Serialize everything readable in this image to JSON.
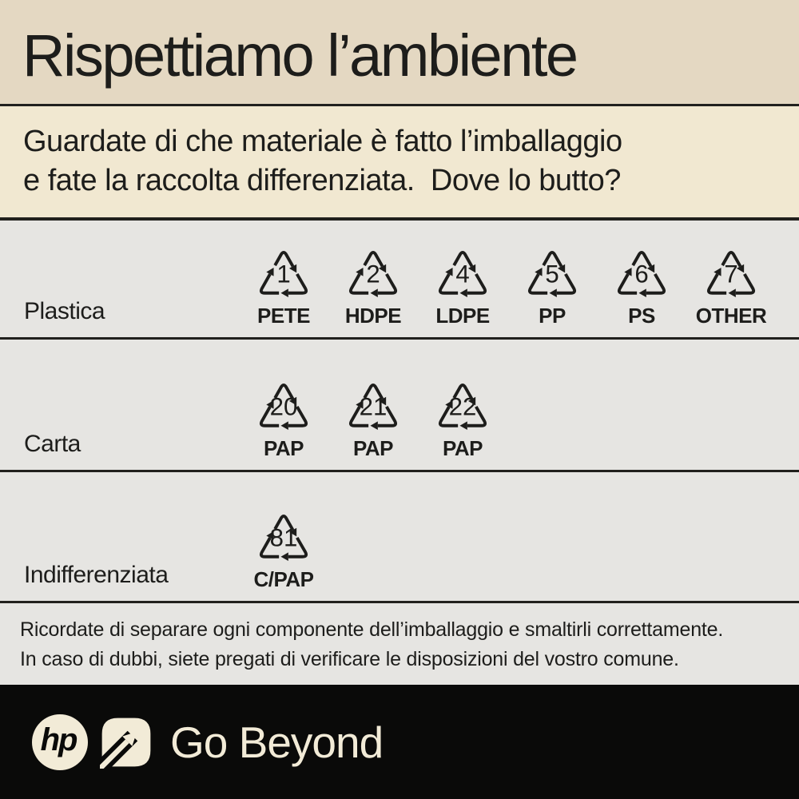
{
  "title": "Rispettiamo l’ambiente",
  "subtitle": {
    "line1": "Guardate di che materiale è fatto l’imballaggio",
    "line2": "e fate la raccolta differenziata.  Dove lo butto?"
  },
  "materials": [
    {
      "label": "Plastica",
      "symbols": [
        {
          "number": "1",
          "code": "PETE"
        },
        {
          "number": "2",
          "code": "HDPE"
        },
        {
          "number": "4",
          "code": "LDPE"
        },
        {
          "number": "5",
          "code": "PP"
        },
        {
          "number": "6",
          "code": "PS"
        },
        {
          "number": "7",
          "code": "OTHER"
        }
      ]
    },
    {
      "label": "Carta",
      "symbols": [
        {
          "number": "20",
          "code": "PAP"
        },
        {
          "number": "21",
          "code": "PAP"
        },
        {
          "number": "22",
          "code": "PAP"
        }
      ]
    },
    {
      "label": "Indifferenziata",
      "symbols": [
        {
          "number": "81",
          "code": "C/PAP"
        }
      ]
    }
  ],
  "note": {
    "line1": "Ricordate di separare ogni componente dell’imballaggio e smaltirli correttamente.",
    "line2": "In caso di dubbi, siete pregati di verificare le disposizioni del vostro comune."
  },
  "footer": {
    "brand": "hp",
    "tagline": "Go Beyond"
  },
  "icons": {
    "recycling-triangle-icon": "triangle of three chasing arrows with resin code number",
    "hp-logo": "hp letters in cream circle",
    "go-beyond-arrow-icon": "diagonal arrow through leaf-shaped badge"
  },
  "colors": {
    "title_bg": "#e4d8c2",
    "subtitle_bg": "#f1e8d1",
    "table_bg": "#e6e5e2",
    "divider": "#21201d",
    "text": "#1d1d1b",
    "footer_bg": "#0a0a09",
    "footer_fg": "#f2ebd7"
  }
}
